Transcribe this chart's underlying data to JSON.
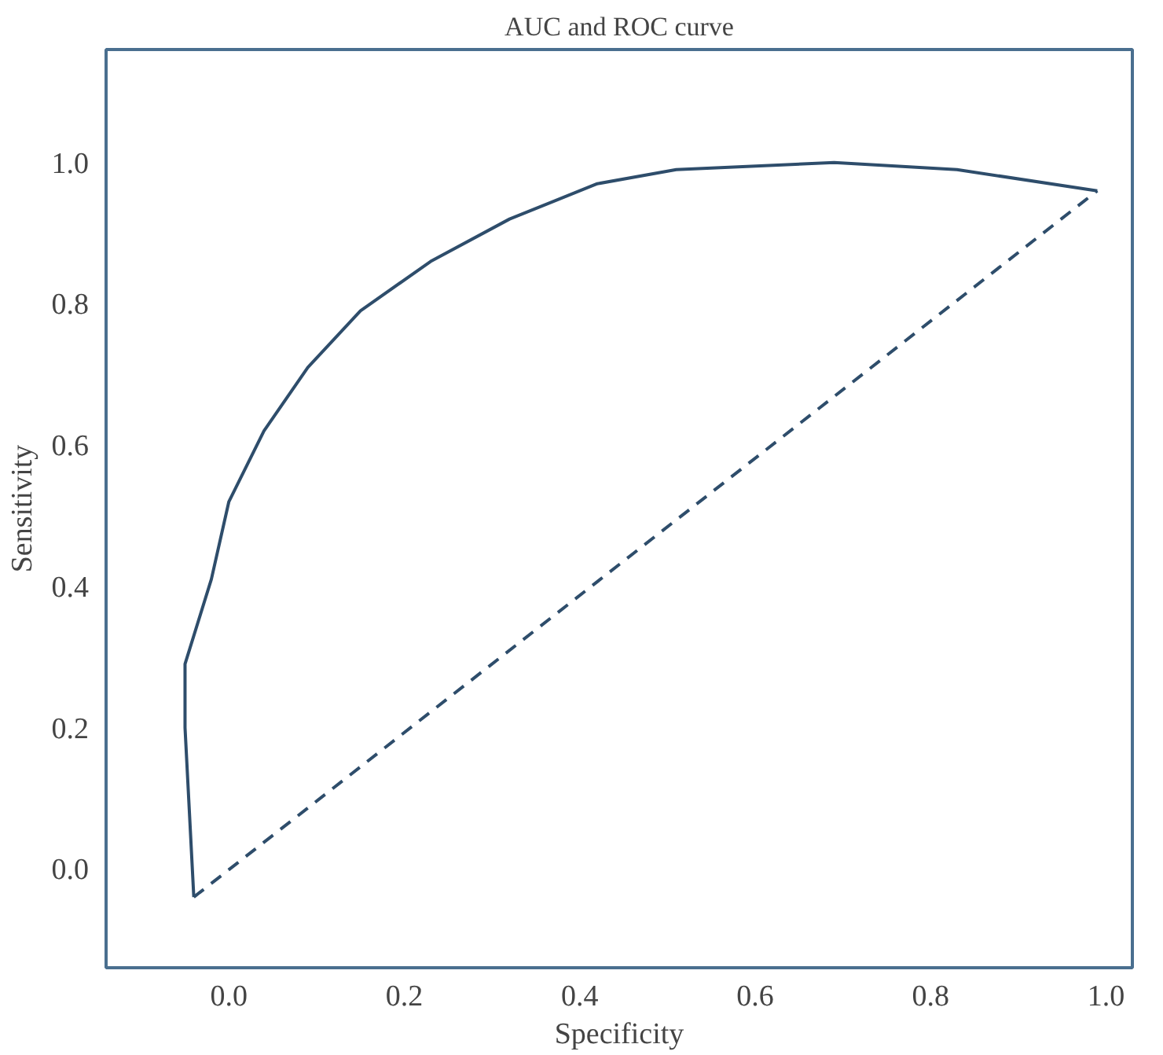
{
  "chart_data": {
    "type": "line",
    "title": "AUC and ROC curve",
    "xlabel": "Specificity",
    "ylabel": "Sensitivity",
    "xlim": [
      -0.14,
      1.03
    ],
    "ylim": [
      -0.14,
      1.16
    ],
    "xticks": [
      {
        "value": 0,
        "label": "0.0"
      },
      0.2,
      0.4,
      0.6,
      0.8,
      {
        "value": 1,
        "label": "1.0"
      }
    ],
    "yticks": [
      {
        "value": 0,
        "label": "0.0"
      },
      0.2,
      0.4,
      0.6,
      0.8,
      {
        "value": 1,
        "label": "1.0"
      }
    ],
    "grid": false,
    "series": [
      {
        "color": "#2e4d6b",
        "line_style": "solid",
        "x": [
          -0.04,
          -0.05,
          -0.05,
          -0.02,
          0.0,
          0.04,
          0.09,
          0.15,
          0.23,
          0.32,
          0.42,
          0.51,
          0.69,
          0.83,
          0.99
        ],
        "values": [
          -0.04,
          0.2,
          0.29,
          0.41,
          0.52,
          0.62,
          0.71,
          0.79,
          0.86,
          0.92,
          0.97,
          0.99,
          1.0,
          0.99,
          0.96
        ]
      },
      {
        "color": "#2e4d6b",
        "line_style": "dashed",
        "x": [
          -0.04,
          0.99
        ],
        "values": [
          -0.04,
          0.96
        ]
      }
    ]
  }
}
